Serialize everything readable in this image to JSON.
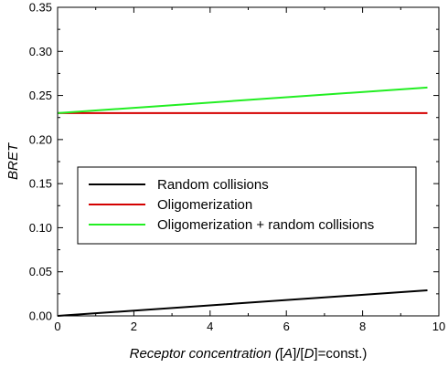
{
  "chart_data": {
    "type": "line",
    "xlabel_parts": [
      {
        "text": "Receptor concentration (",
        "italic": true
      },
      {
        "text": "[",
        "italic": false
      },
      {
        "text": "A",
        "italic": true
      },
      {
        "text": "]/[",
        "italic": false
      },
      {
        "text": "D",
        "italic": true
      },
      {
        "text": "]=const.)",
        "italic": false
      }
    ],
    "ylabel": "BRET",
    "xlim": [
      0,
      10
    ],
    "ylim": [
      0,
      0.35
    ],
    "x_ticks": [
      "0",
      "2",
      "4",
      "6",
      "8",
      "10"
    ],
    "x_tick_values": [
      0,
      2,
      4,
      6,
      8,
      10
    ],
    "y_ticks": [
      "0.00",
      "0.05",
      "0.10",
      "0.15",
      "0.20",
      "0.25",
      "0.30",
      "0.35"
    ],
    "y_tick_values": [
      0,
      0.05,
      0.1,
      0.15,
      0.2,
      0.25,
      0.3,
      0.35
    ],
    "x_minor_step": 1,
    "y_minor_step": 0.025,
    "legend_position": "center-left",
    "series": [
      {
        "name": "Random collisions",
        "color": "#000000",
        "x": [
          0,
          9.7
        ],
        "y": [
          0.0,
          0.029
        ]
      },
      {
        "name": "Oligomerization",
        "color": "#d40000",
        "x": [
          0,
          9.7
        ],
        "y": [
          0.23,
          0.23
        ]
      },
      {
        "name": "Oligomerization + random collisions",
        "color": "#22ee22",
        "x": [
          0,
          9.7
        ],
        "y": [
          0.23,
          0.259
        ]
      }
    ]
  }
}
